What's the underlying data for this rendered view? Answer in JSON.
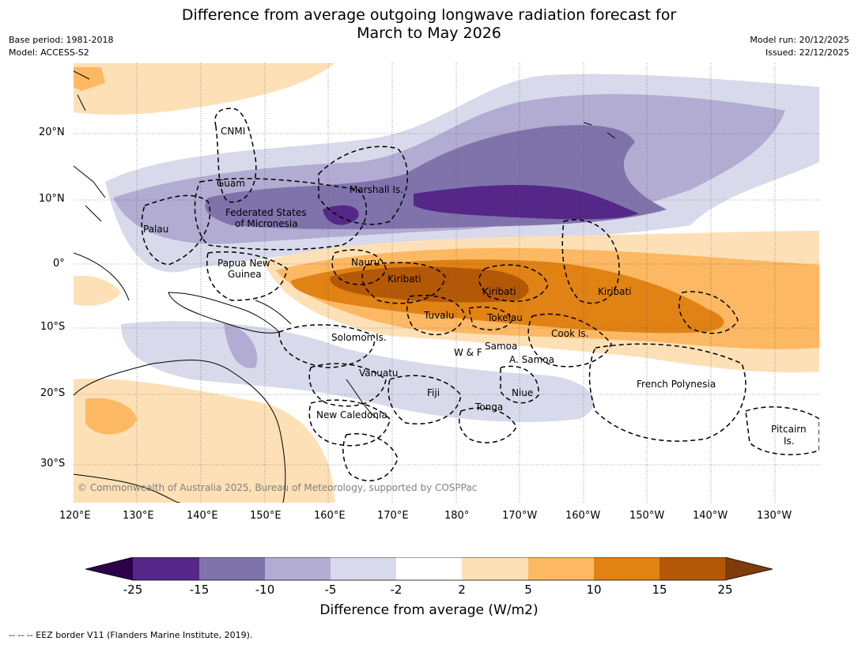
{
  "title": {
    "line1": "Difference from average outgoing longwave radiation forecast for",
    "line2": "March to May 2026"
  },
  "meta": {
    "base_period": "Base period: 1981-2018",
    "model": "Model: ACCESS-S2",
    "model_run": "Model run: 20/12/2025",
    "issued": "Issued: 22/12/2025"
  },
  "axes": {
    "lat_ticks": [
      "20°N",
      "10°N",
      "0°",
      "10°S",
      "20°S",
      "30°S"
    ],
    "lon_ticks": [
      "120°E",
      "130°E",
      "140°E",
      "150°E",
      "160°E",
      "170°E",
      "180°",
      "170°W",
      "160°W",
      "150°W",
      "140°W",
      "130°W"
    ]
  },
  "regions": {
    "cnmi": "CNMI",
    "guam": "Guam",
    "marshall": "Marshall Is.",
    "fsm_1": "Federated States",
    "fsm_2": "of Micronesia",
    "palau": "Palau",
    "nauru": "Nauru",
    "png_1": "Papua New",
    "png_2": "Guinea",
    "kiribati_w": "Kiribati",
    "kiribati_c": "Kiribati",
    "kiribati_e": "Kiribati",
    "tuvalu": "Tuvalu",
    "tokelau": "Tokelau",
    "cook": "Cook Is.",
    "solomon": "Solomon Is.",
    "samoa": "Samoa",
    "wf": "W & F",
    "asamoa": "A. Samoa",
    "vanuatu": "Vanuatu",
    "fiji": "Fiji",
    "niue": "Niue",
    "tonga": "Tonga",
    "french_polynesia": "French Polynesia",
    "new_caledonia": "New Caledonia",
    "pitcairn_1": "Pitcairn",
    "pitcairn_2": "Is."
  },
  "copyright": "© Commonwealth of Australia 2025, Bureau of Meteorology, supported by COSPPac",
  "colorbar": {
    "title": "Difference from average (W/m2)",
    "labels": [
      "-25",
      "-15",
      "-10",
      "-5",
      "-2",
      "2",
      "5",
      "10",
      "15",
      "25"
    ],
    "colors": [
      "#2d004b",
      "#542788",
      "#8073ac",
      "#b2abd2",
      "#d8daeb",
      "#ffffff",
      "#fee0b6",
      "#fdb863",
      "#e08214",
      "#b35806",
      "#7f3b08"
    ]
  },
  "footnote": "--  --  -- EEZ border V11 (Flanders Marine Institute, 2019)."
}
